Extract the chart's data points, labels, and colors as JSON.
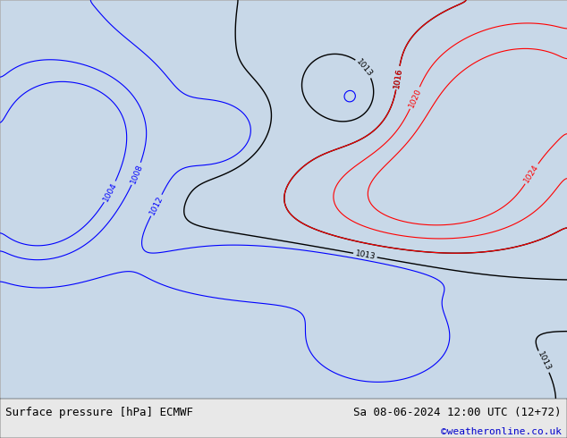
{
  "title_left": "Surface pressure [hPa] ECMWF",
  "title_right": "Sa 08-06-2024 12:00 UTC (12+72)",
  "credit": "©weatheronline.co.uk",
  "ocean_color": "#c8d8e8",
  "land_color": "#c8e6a0",
  "coast_color": "#888888",
  "fig_width": 6.34,
  "fig_height": 4.9,
  "dpi": 100,
  "xlim": [
    88,
    178
  ],
  "ylim": [
    -15,
    56
  ],
  "title_fontsize": 9,
  "credit_fontsize": 8,
  "credit_color": "#0000cc",
  "footer_bg": "#e8e8e8",
  "blue_levels": [
    1004,
    1008,
    1012
  ],
  "black_levels": [
    1013,
    1016
  ],
  "red_levels": [
    1016,
    1020,
    1024
  ],
  "label_fontsize": 6.5
}
